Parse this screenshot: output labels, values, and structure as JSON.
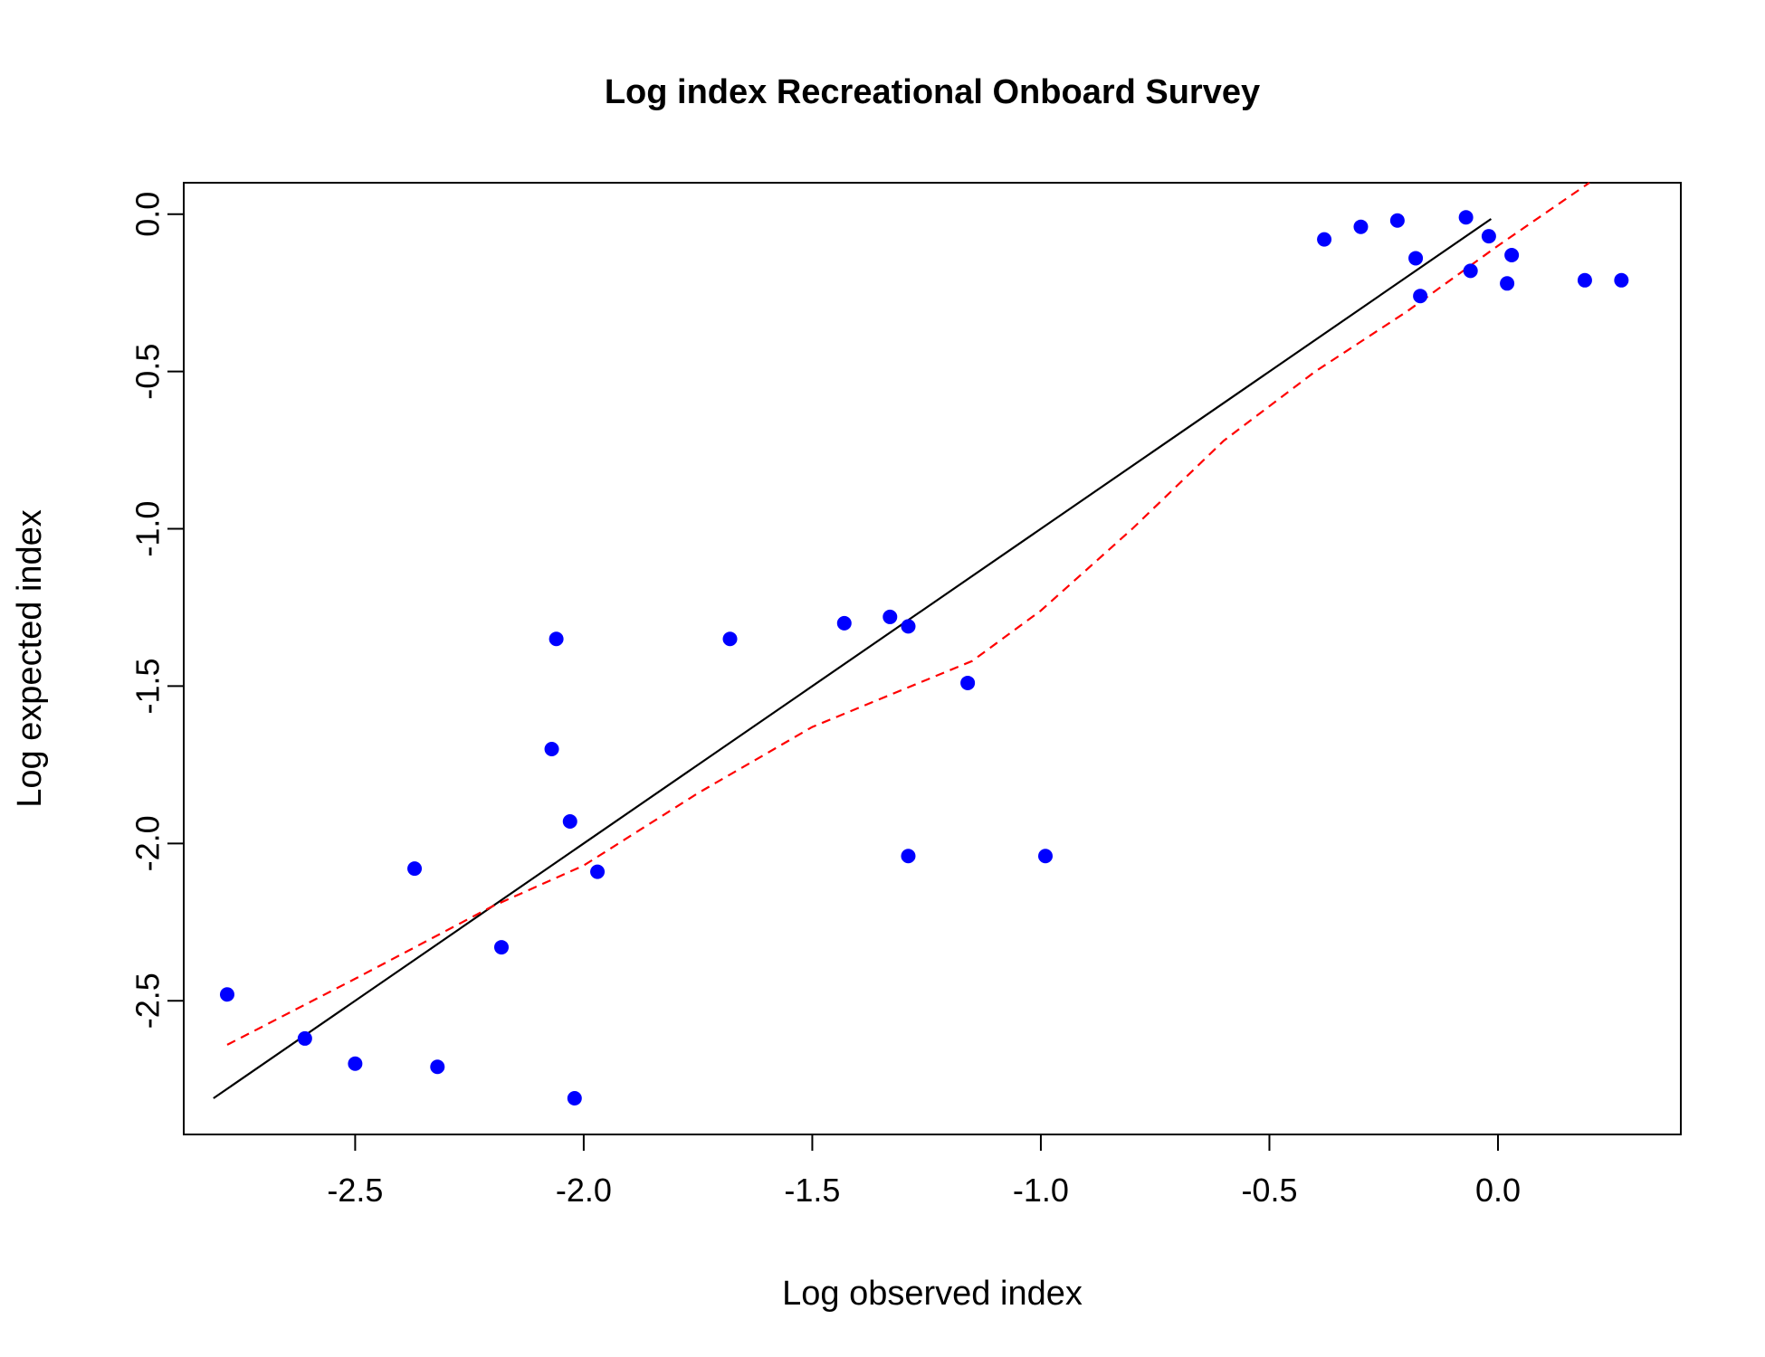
{
  "chart_data": {
    "type": "scatter",
    "title": "Log index Recreational Onboard Survey",
    "xlabel": "Log observed index",
    "ylabel": "Log expected index",
    "xlim": [
      -2.875,
      0.4
    ],
    "ylim": [
      -2.925,
      0.1
    ],
    "x_ticks": [
      -2.5,
      -2.0,
      -1.5,
      -1.0,
      -0.5,
      0.0
    ],
    "x_tick_labels": [
      "-2.5",
      "-2.0",
      "-1.5",
      "-1.0",
      "-0.5",
      "0.0"
    ],
    "y_ticks": [
      -2.5,
      -2.0,
      -1.5,
      -1.0,
      -0.5,
      0.0
    ],
    "y_tick_labels": [
      "-2.5",
      "-2.0",
      "-1.5",
      "-1.0",
      "-0.5",
      "0.0"
    ],
    "grid": false,
    "legend": false,
    "points": [
      {
        "x": -2.78,
        "y": -2.48
      },
      {
        "x": -2.61,
        "y": -2.62
      },
      {
        "x": -2.5,
        "y": -2.7
      },
      {
        "x": -2.37,
        "y": -2.08
      },
      {
        "x": -2.32,
        "y": -2.71
      },
      {
        "x": -2.18,
        "y": -2.33
      },
      {
        "x": -2.07,
        "y": -1.7
      },
      {
        "x": -2.06,
        "y": -1.35
      },
      {
        "x": -2.03,
        "y": -1.93
      },
      {
        "x": -2.02,
        "y": -2.81
      },
      {
        "x": -1.97,
        "y": -2.09
      },
      {
        "x": -1.68,
        "y": -1.35
      },
      {
        "x": -1.43,
        "y": -1.3
      },
      {
        "x": -1.33,
        "y": -1.28
      },
      {
        "x": -1.29,
        "y": -1.31
      },
      {
        "x": -1.29,
        "y": -2.04
      },
      {
        "x": -1.16,
        "y": -1.49
      },
      {
        "x": -0.99,
        "y": -2.04
      },
      {
        "x": -0.38,
        "y": -0.08
      },
      {
        "x": -0.3,
        "y": -0.04
      },
      {
        "x": -0.22,
        "y": -0.02
      },
      {
        "x": -0.18,
        "y": -0.14
      },
      {
        "x": -0.17,
        "y": -0.26
      },
      {
        "x": -0.07,
        "y": -0.01
      },
      {
        "x": -0.06,
        "y": -0.18
      },
      {
        "x": -0.02,
        "y": -0.07
      },
      {
        "x": 0.02,
        "y": -0.22
      },
      {
        "x": 0.03,
        "y": -0.13
      },
      {
        "x": 0.19,
        "y": -0.21
      },
      {
        "x": 0.27,
        "y": -0.21
      }
    ],
    "identity_line": {
      "x": [
        -2.81,
        -0.015
      ],
      "y": [
        -2.81,
        -0.015
      ]
    },
    "smooth_line": {
      "x": [
        -2.78,
        -2.5,
        -2.2,
        -2.0,
        -1.75,
        -1.5,
        -1.3,
        -1.15,
        -1.0,
        -0.8,
        -0.6,
        -0.4,
        -0.2,
        0.0,
        0.2
      ],
      "y": [
        -2.64,
        -2.43,
        -2.2,
        -2.07,
        -1.84,
        -1.63,
        -1.51,
        -1.42,
        -1.26,
        -1.0,
        -0.72,
        -0.5,
        -0.31,
        -0.1,
        0.1
      ]
    },
    "colors": {
      "points": "#0000ff",
      "identity_line": "#000000",
      "smooth_line": "#ff0000"
    }
  }
}
